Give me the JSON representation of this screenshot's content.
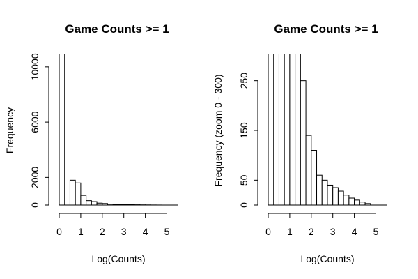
{
  "chart_data": [
    {
      "type": "bar",
      "title": "Game Counts >= 1",
      "xlabel": "Log(Counts)",
      "ylabel": "Frequency",
      "xlim": [
        0,
        5.3
      ],
      "ylim": [
        0,
        10800
      ],
      "bin_width": 0.25,
      "x_ticks": [
        0,
        1,
        2,
        3,
        4,
        5
      ],
      "y_ticks": [
        0,
        2000,
        6000,
        10000
      ],
      "bins_start": [
        0,
        0.25,
        0.5,
        0.75,
        1,
        1.25,
        1.5,
        1.75,
        2,
        2.25,
        2.5,
        2.75,
        3,
        3.25,
        3.5,
        3.75,
        4,
        4.25,
        4.5
      ],
      "values": [
        11000,
        0,
        1800,
        1600,
        700,
        320,
        250,
        140,
        110,
        60,
        50,
        40,
        35,
        28,
        20,
        14,
        10,
        6,
        3
      ]
    },
    {
      "type": "bar",
      "title": "Game Counts >= 1",
      "xlabel": "Log(Counts)",
      "ylabel": "Frequency (zoom 0 - 300)",
      "xlim": [
        0,
        5.3
      ],
      "ylim": [
        0,
        300
      ],
      "bin_width": 0.25,
      "x_ticks": [
        0,
        1,
        2,
        3,
        4,
        5
      ],
      "y_ticks": [
        0,
        50,
        150,
        250
      ],
      "bins_start": [
        0,
        0.25,
        0.5,
        0.75,
        1,
        1.25,
        1.5,
        1.75,
        2,
        2.25,
        2.5,
        2.75,
        3,
        3.25,
        3.5,
        3.75,
        4,
        4.25,
        4.5
      ],
      "values": [
        11000,
        0,
        1800,
        1600,
        700,
        320,
        250,
        140,
        110,
        60,
        50,
        40,
        35,
        28,
        20,
        14,
        10,
        6,
        3
      ]
    }
  ]
}
